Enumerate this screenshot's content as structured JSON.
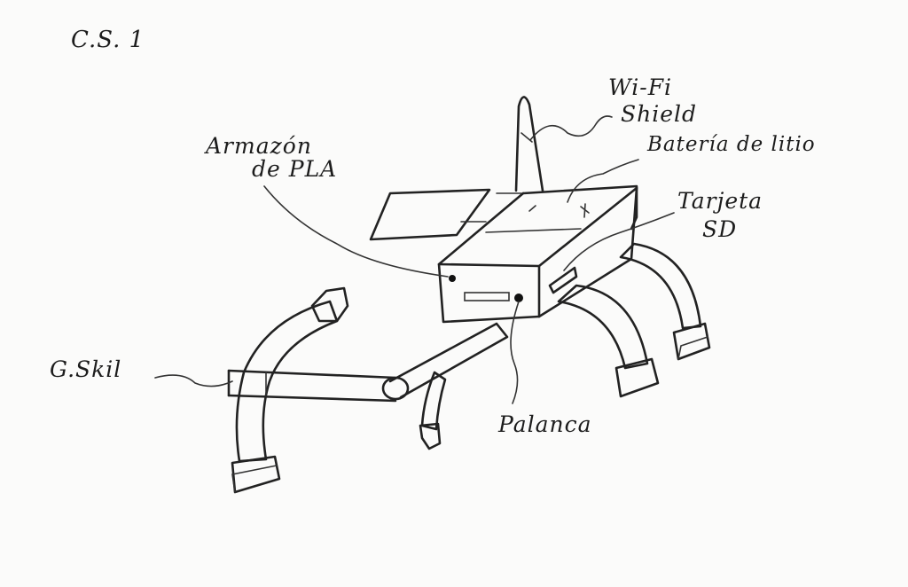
{
  "sheet_id": "C.S. 1",
  "labels": {
    "wifi_1": "Wi-Fi",
    "wifi_2": "Shield",
    "bateria": "Batería de litio",
    "armazon_1": "Armazón",
    "armazon_2": "de PLA",
    "tarjeta_1": "Tarjeta",
    "tarjeta_2": "SD",
    "gskil": "G.Skil",
    "palanca": "Palanca",
    "battery_minus": "—",
    "battery_plus": "+"
  },
  "colors": {
    "ink": "#222222",
    "paper": "#fbfbfa"
  }
}
